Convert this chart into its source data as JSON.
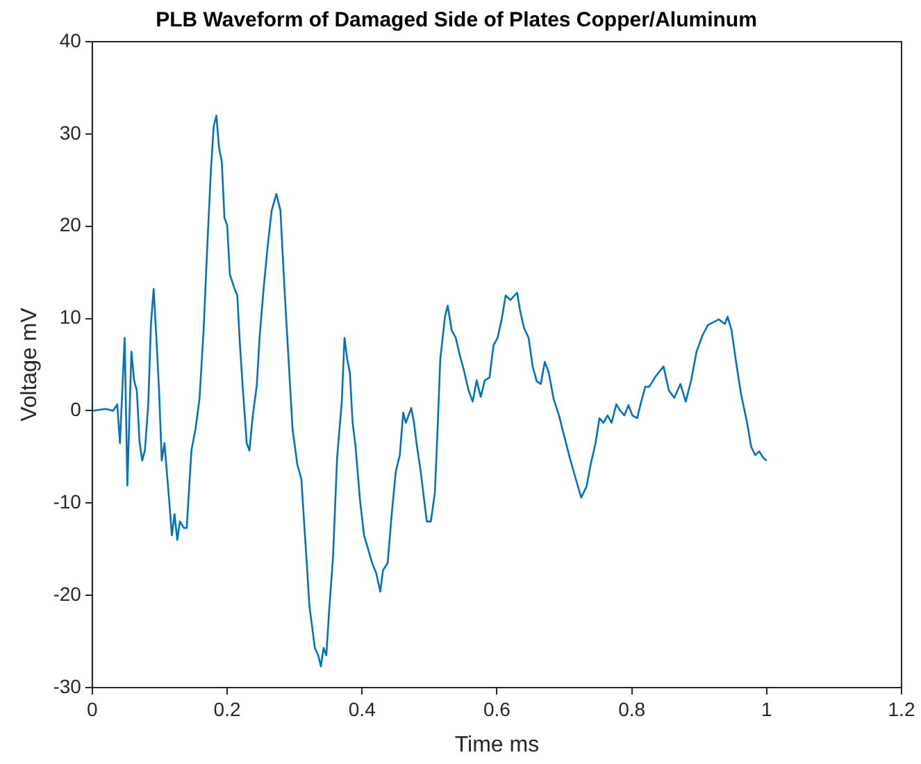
{
  "chart_data": {
    "type": "line",
    "title": "PLB Waveform of Damaged Side of Plates Copper/Aluminum",
    "xlabel": "Time ms",
    "ylabel": "Voltage mV",
    "xlim": [
      0,
      1.2
    ],
    "xticks": [
      0,
      0.2,
      0.4,
      0.6,
      0.8,
      1,
      1.2
    ],
    "ylim": [
      -30,
      40
    ],
    "yticks": [
      -30,
      -20,
      -10,
      0,
      10,
      20,
      30,
      40
    ],
    "grid": false,
    "legend": false,
    "marker": "none",
    "line_style": "solid",
    "series": [
      {
        "color": "#0072bd",
        "x": [
          0,
          0.02,
          0.031,
          0.037,
          0.041,
          0.048,
          0.052,
          0.058,
          0.062,
          0.066,
          0.07,
          0.074,
          0.078,
          0.083,
          0.087,
          0.091,
          0.095,
          0.099,
          0.103,
          0.107,
          0.114,
          0.118,
          0.122,
          0.126,
          0.13,
          0.136,
          0.14,
          0.147,
          0.153,
          0.159,
          0.165,
          0.171,
          0.176,
          0.18,
          0.184,
          0.188,
          0.192,
          0.196,
          0.2,
          0.204,
          0.211,
          0.215,
          0.219,
          0.223,
          0.229,
          0.233,
          0.238,
          0.244,
          0.248,
          0.254,
          0.26,
          0.266,
          0.273,
          0.279,
          0.285,
          0.291,
          0.297,
          0.304,
          0.31,
          0.314,
          0.318,
          0.322,
          0.326,
          0.33,
          0.335,
          0.339,
          0.343,
          0.347,
          0.351,
          0.357,
          0.363,
          0.37,
          0.374,
          0.378,
          0.382,
          0.386,
          0.39,
          0.397,
          0.403,
          0.409,
          0.415,
          0.421,
          0.427,
          0.431,
          0.438,
          0.444,
          0.45,
          0.456,
          0.461,
          0.465,
          0.469,
          0.473,
          0.477,
          0.481,
          0.487,
          0.496,
          0.502,
          0.508,
          0.512,
          0.516,
          0.523,
          0.527,
          0.533,
          0.539,
          0.545,
          0.551,
          0.558,
          0.564,
          0.57,
          0.576,
          0.582,
          0.589,
          0.595,
          0.601,
          0.607,
          0.613,
          0.62,
          0.626,
          0.63,
          0.634,
          0.64,
          0.647,
          0.653,
          0.659,
          0.665,
          0.671,
          0.677,
          0.684,
          0.692,
          0.7,
          0.708,
          0.717,
          0.725,
          0.733,
          0.739,
          0.746,
          0.752,
          0.758,
          0.764,
          0.77,
          0.777,
          0.783,
          0.789,
          0.795,
          0.801,
          0.808,
          0.814,
          0.82,
          0.826,
          0.836,
          0.847,
          0.855,
          0.863,
          0.872,
          0.88,
          0.888,
          0.896,
          0.905,
          0.913,
          0.921,
          0.929,
          0.938,
          0.942,
          0.948,
          0.954,
          0.962,
          0.971,
          0.977,
          0.983,
          0.989,
          0.995,
          1.0
        ],
        "values": [
          0,
          0.2,
          0,
          0.7,
          -3.5,
          7.9,
          -8.1,
          6.4,
          3.3,
          2.2,
          -3.3,
          -5.4,
          -4.3,
          0.7,
          9.4,
          13.2,
          7.9,
          2.2,
          -5.4,
          -3.5,
          -9.7,
          -13.5,
          -11.2,
          -14,
          -12,
          -12.7,
          -12.7,
          -4.3,
          -2,
          1.3,
          8.7,
          18.6,
          26.2,
          30.8,
          32,
          28.5,
          27,
          20.9,
          20.1,
          14.8,
          13.2,
          12.5,
          7.1,
          2.6,
          -3.5,
          -4.3,
          -0.5,
          2.8,
          7.9,
          13.2,
          17.8,
          21.7,
          23.5,
          21.7,
          13.2,
          5.6,
          -2,
          -5.8,
          -7.4,
          -12,
          -16.5,
          -21.2,
          -23.4,
          -25.7,
          -26.5,
          -27.7,
          -25.7,
          -26.5,
          -21.9,
          -15.8,
          -5.1,
          1,
          7.9,
          5.6,
          4.1,
          -1.3,
          -3.6,
          -9.7,
          -13.5,
          -15,
          -16.5,
          -17.6,
          -19.6,
          -17.3,
          -16.5,
          -11.2,
          -6.6,
          -4.8,
          -0.2,
          -1.3,
          -0.5,
          0.3,
          -1.3,
          -3.6,
          -6.6,
          -12,
          -12,
          -8.9,
          -2,
          5.6,
          10.2,
          11.4,
          8.7,
          7.9,
          6,
          4.4,
          2.2,
          1,
          3.3,
          1.5,
          3.3,
          3.6,
          7.1,
          7.9,
          9.9,
          12.5,
          12,
          12.5,
          12.8,
          11,
          9,
          7.9,
          4.8,
          3.2,
          2.9,
          5.3,
          4.1,
          1.3,
          -0.5,
          -2.8,
          -5.1,
          -7.4,
          -9.4,
          -8.2,
          -5.8,
          -3.6,
          -0.8,
          -1.3,
          -0.5,
          -1.3,
          0.7,
          0,
          -0.5,
          0.6,
          -0.5,
          -0.8,
          1,
          2.6,
          2.6,
          3.8,
          4.8,
          2.2,
          1.4,
          2.9,
          1,
          3.3,
          6.4,
          8.2,
          9.3,
          9.6,
          9.9,
          9.4,
          10.2,
          8.7,
          5.6,
          1.8,
          -1.3,
          -3.9,
          -4.8,
          -4.4,
          -5.1,
          -5.4
        ]
      }
    ]
  }
}
